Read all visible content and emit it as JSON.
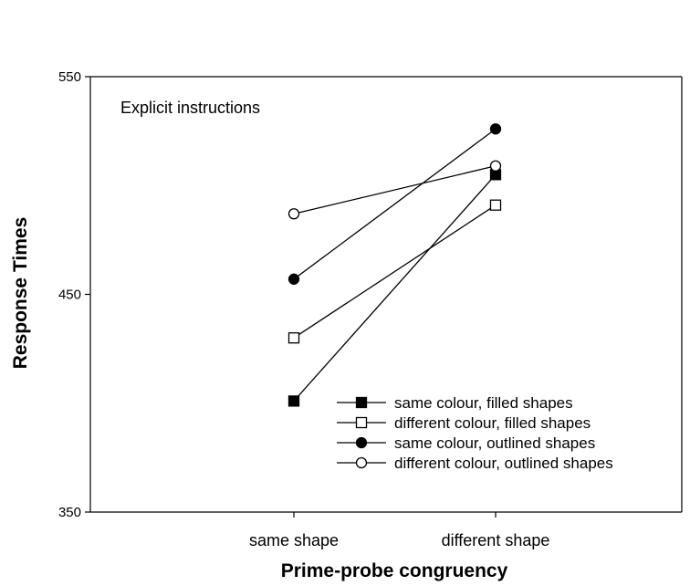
{
  "chart_data": {
    "type": "line",
    "annotation": "Explicit instructions",
    "xlabel": "Prime-probe congruency",
    "ylabel": "Response Times",
    "categories": [
      "same shape",
      "different shape"
    ],
    "ylim": [
      350,
      550
    ],
    "yticks": [
      350,
      450,
      550
    ],
    "grid": false,
    "legend_position": "bottom-right",
    "series": [
      {
        "name": "same colour, filled shapes",
        "marker": "square",
        "filled": true,
        "values": [
          401,
          505
        ]
      },
      {
        "name": "different colour, filled shapes",
        "marker": "square",
        "filled": false,
        "values": [
          430,
          491
        ]
      },
      {
        "name": "same colour, outlined shapes",
        "marker": "circle",
        "filled": true,
        "values": [
          457,
          526
        ]
      },
      {
        "name": "different colour, outlined shapes",
        "marker": "circle",
        "filled": false,
        "values": [
          487,
          509
        ]
      }
    ],
    "colors": {
      "line": "#000000",
      "marker_fill": "#000000",
      "marker_hollow": "#ffffff"
    }
  }
}
